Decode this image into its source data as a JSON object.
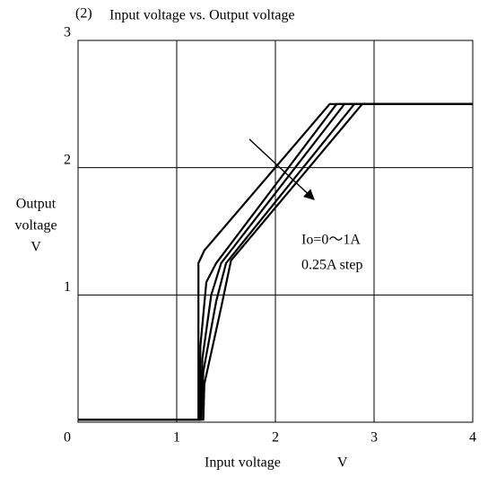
{
  "chart_data": {
    "type": "line",
    "label": "(2)",
    "title": "Input voltage vs. Output voltage",
    "xlabel": [
      "Input voltage",
      "V"
    ],
    "ylabel": [
      "Output",
      "voltage",
      "V"
    ],
    "annotations": [
      "Io=0～1A",
      "0.25A step"
    ],
    "xlim": [
      0,
      4
    ],
    "xticks": [
      0,
      1,
      2,
      3,
      4
    ],
    "ylim": [
      0,
      3
    ],
    "yticks": [
      1,
      2,
      3
    ],
    "grid": true,
    "color": "#000000",
    "series": [
      {
        "x": [
          0,
          1.22,
          1.22,
          1.28,
          2.55,
          4
        ],
        "values": [
          0.02,
          0.02,
          1.25,
          1.35,
          2.5,
          2.5
        ]
      },
      {
        "x": [
          0,
          1.23,
          1.24,
          1.3,
          1.4,
          2.62,
          4
        ],
        "values": [
          0.02,
          0.02,
          0.6,
          1.1,
          1.25,
          2.5,
          2.5
        ]
      },
      {
        "x": [
          0,
          1.24,
          1.26,
          1.35,
          1.45,
          2.7,
          4
        ],
        "values": [
          0.02,
          0.02,
          0.5,
          1.0,
          1.25,
          2.5,
          2.5
        ]
      },
      {
        "x": [
          0,
          1.25,
          1.27,
          1.4,
          1.5,
          2.8,
          4
        ],
        "values": [
          0.02,
          0.02,
          0.4,
          0.95,
          1.25,
          2.5,
          2.5
        ]
      },
      {
        "x": [
          0,
          1.27,
          1.28,
          1.45,
          1.55,
          2.88,
          4
        ],
        "values": [
          0.02,
          0.02,
          0.3,
          0.9,
          1.27,
          2.5,
          2.5
        ]
      }
    ]
  }
}
